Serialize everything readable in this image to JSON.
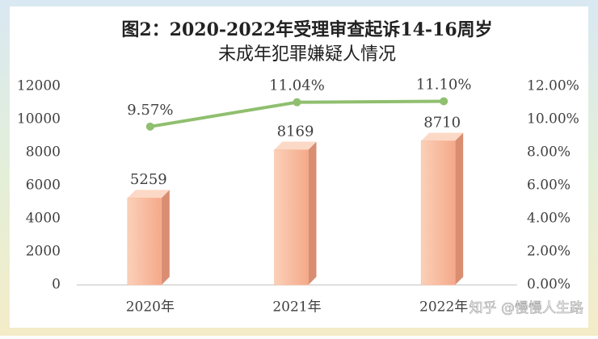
{
  "chart_data": {
    "type": "combo",
    "title": [
      "图2：2020-2022年受理审查起诉14-16周岁",
      "未成年犯罪嫌疑人情况"
    ],
    "categories": [
      "2020年",
      "2021年",
      "2022年"
    ],
    "series": [
      {
        "type": "bar",
        "color": "#f7b89a",
        "values": [
          5259,
          8169,
          8710
        ]
      },
      {
        "type": "line",
        "axis": "y2",
        "color": "#8fbf6f",
        "values": [
          9.57,
          11.04,
          11.1
        ],
        "value_labels": [
          "9.57%",
          "11.04%",
          "11.10%"
        ]
      }
    ],
    "ylim": [
      0,
      12000
    ],
    "yticks": [
      0,
      2000,
      4000,
      6000,
      8000,
      10000,
      12000
    ],
    "y2lim": [
      0,
      12
    ],
    "y2ticks": [
      {
        "value": 0,
        "label": "0.00%"
      },
      {
        "value": 2,
        "label": "2.00%"
      },
      {
        "value": 4,
        "label": "4.00%"
      },
      {
        "value": 6,
        "label": "6.00%"
      },
      {
        "value": 8,
        "label": "8.00%"
      },
      {
        "value": 10,
        "label": "10.00%"
      },
      {
        "value": 12,
        "label": "12.00%"
      }
    ],
    "grid": false,
    "watermark": "知乎 @慢慢人生路"
  }
}
